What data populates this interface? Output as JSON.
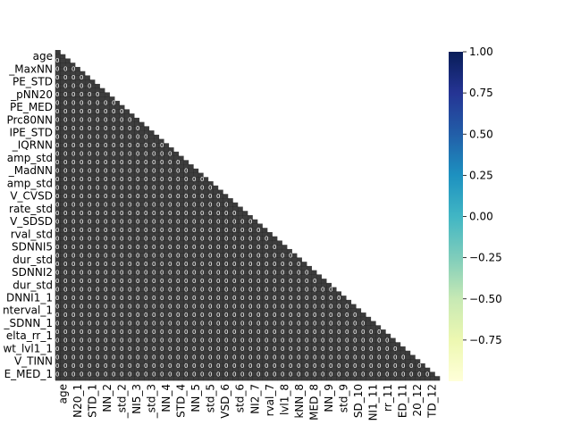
{
  "chart_data": {
    "type": "heatmap",
    "subtype": "lower-triangular correlation matrix",
    "cell_annotations": "dense white numeric labels overprinted in every cell (illegible)",
    "y_tick_labels": [
      "age",
      "_MaxNN",
      "PE_STD",
      "_pNN20",
      "PE_MED",
      "Prc80NN",
      "IPE_STD",
      "_IQRNN",
      "amp_std",
      "_MadNN",
      "amp_std",
      "V_CVSD",
      "rate_std",
      "V_SDSD",
      "rval_std",
      "SDNNI5",
      "dur_std",
      "SDNNI2",
      "dur_std",
      "DNNI1_1",
      "nterval_1",
      "_SDNN_1",
      "elta_rr_1",
      "wt_lvl1_1",
      "V_TINN",
      "E_MED_1"
    ],
    "x_tick_labels": [
      "age",
      "N20_1",
      "STD_1",
      "NN_2",
      "_std_2",
      "NI5_3",
      "_std_3",
      "NN_4",
      "STD_4",
      "NN_5",
      "std_5",
      "VSD_6",
      "std_6",
      "NI2_7",
      "rval_7",
      "lvl1_8",
      "kNN_8",
      "MED_8",
      "NN_9",
      "std_9",
      "SD_10",
      "NI1_11",
      "rr_11",
      "ED_11",
      "20_12",
      "TD_12"
    ],
    "colorbar": {
      "colormap": "YlGnBu",
      "vmin": -1.0,
      "vmax": 1.0,
      "tick_labels": [
        "1.00",
        "0.75",
        "0.50",
        "0.25",
        "0.00",
        "−0.25",
        "−0.50",
        "−0.75"
      ],
      "tick_values": [
        1.0,
        0.75,
        0.5,
        0.25,
        0.0,
        -0.25,
        -0.5,
        -0.75
      ],
      "colors": [
        "#ffffd9",
        "#edf8b1",
        "#c7e9b4",
        "#7fcdbb",
        "#41b6c4",
        "#1d91c0",
        "#225ea8",
        "#253494",
        "#081d58"
      ]
    },
    "title": "",
    "xlabel": "",
    "ylabel": "",
    "legend": "colorbar at right"
  }
}
